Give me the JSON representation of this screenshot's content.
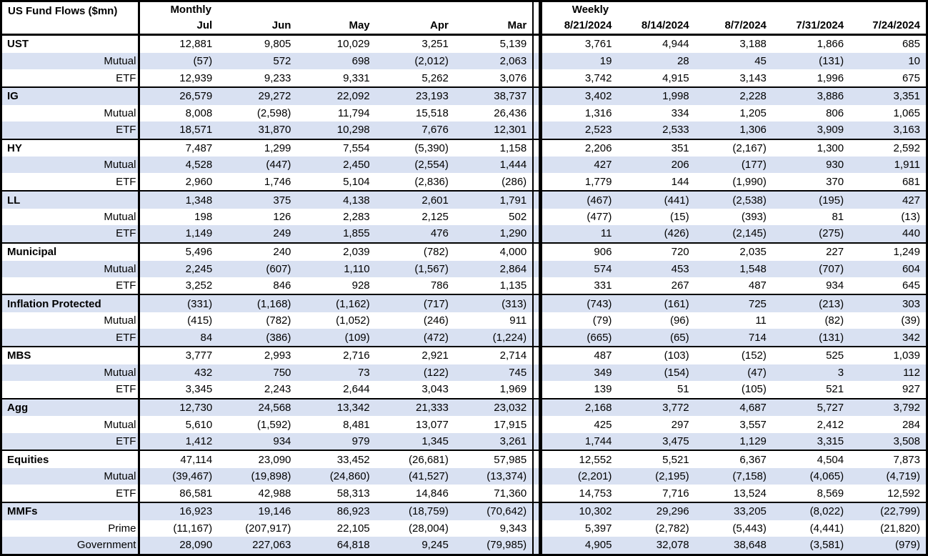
{
  "colors": {
    "row_shading": "#d9e1f2",
    "border": "#000000",
    "text": "#000000",
    "background": "#ffffff"
  },
  "chart_data": {
    "type": "table",
    "title": "US Fund Flows ($mn)",
    "negative_format": "parentheses",
    "sections": [
      {
        "label": "Monthly",
        "columns": [
          "Jul",
          "Jun",
          "May",
          "Apr",
          "Mar"
        ]
      },
      {
        "label": "Weekly",
        "columns": [
          "8/21/2024",
          "8/14/2024",
          "8/7/2024",
          "7/31/2024",
          "7/24/2024"
        ]
      }
    ],
    "groups": [
      {
        "name": "UST",
        "rows": [
          {
            "label": "UST",
            "bold": true,
            "monthly": [
              12881,
              9805,
              10029,
              3251,
              5139
            ],
            "weekly": [
              3761,
              4944,
              3188,
              1866,
              685
            ]
          },
          {
            "label": "Mutual",
            "bold": false,
            "monthly": [
              -57,
              572,
              698,
              -2012,
              2063
            ],
            "weekly": [
              19,
              28,
              45,
              -131,
              10
            ]
          },
          {
            "label": "ETF",
            "bold": false,
            "monthly": [
              12939,
              9233,
              9331,
              5262,
              3076
            ],
            "weekly": [
              3742,
              4915,
              3143,
              1996,
              675
            ]
          }
        ]
      },
      {
        "name": "IG",
        "rows": [
          {
            "label": "IG",
            "bold": true,
            "monthly": [
              26579,
              29272,
              22092,
              23193,
              38737
            ],
            "weekly": [
              3402,
              1998,
              2228,
              3886,
              3351
            ]
          },
          {
            "label": "Mutual",
            "bold": false,
            "monthly": [
              8008,
              -2598,
              11794,
              15518,
              26436
            ],
            "weekly": [
              1316,
              334,
              1205,
              806,
              1065
            ]
          },
          {
            "label": "ETF",
            "bold": false,
            "monthly": [
              18571,
              31870,
              10298,
              7676,
              12301
            ],
            "weekly": [
              2523,
              2533,
              1306,
              3909,
              3163
            ]
          }
        ]
      },
      {
        "name": "HY",
        "rows": [
          {
            "label": "HY",
            "bold": true,
            "monthly": [
              7487,
              1299,
              7554,
              -5390,
              1158
            ],
            "weekly": [
              2206,
              351,
              -2167,
              1300,
              2592
            ]
          },
          {
            "label": "Mutual",
            "bold": false,
            "monthly": [
              4528,
              -447,
              2450,
              -2554,
              1444
            ],
            "weekly": [
              427,
              206,
              -177,
              930,
              1911
            ]
          },
          {
            "label": "ETF",
            "bold": false,
            "monthly": [
              2960,
              1746,
              5104,
              -2836,
              -286
            ],
            "weekly": [
              1779,
              144,
              -1990,
              370,
              681
            ]
          }
        ]
      },
      {
        "name": "LL",
        "rows": [
          {
            "label": "LL",
            "bold": true,
            "monthly": [
              1348,
              375,
              4138,
              2601,
              1791
            ],
            "weekly": [
              -467,
              -441,
              -2538,
              -195,
              427
            ]
          },
          {
            "label": "Mutual",
            "bold": false,
            "monthly": [
              198,
              126,
              2283,
              2125,
              502
            ],
            "weekly": [
              -477,
              -15,
              -393,
              81,
              -13
            ]
          },
          {
            "label": "ETF",
            "bold": false,
            "monthly": [
              1149,
              249,
              1855,
              476,
              1290
            ],
            "weekly": [
              11,
              -426,
              -2145,
              -275,
              440
            ]
          }
        ]
      },
      {
        "name": "Municipal",
        "rows": [
          {
            "label": "Municipal",
            "bold": true,
            "monthly": [
              5496,
              240,
              2039,
              -782,
              4000
            ],
            "weekly": [
              906,
              720,
              2035,
              227,
              1249
            ]
          },
          {
            "label": "Mutual",
            "bold": false,
            "monthly": [
              2245,
              -607,
              1110,
              -1567,
              2864
            ],
            "weekly": [
              574,
              453,
              1548,
              -707,
              604
            ]
          },
          {
            "label": "ETF",
            "bold": false,
            "monthly": [
              3252,
              846,
              928,
              786,
              1135
            ],
            "weekly": [
              331,
              267,
              487,
              934,
              645
            ]
          }
        ]
      },
      {
        "name": "Inflation Protected",
        "rows": [
          {
            "label": "Inflation Protected",
            "bold": true,
            "monthly": [
              -331,
              -1168,
              -1162,
              -717,
              -313
            ],
            "weekly": [
              -743,
              -161,
              725,
              -213,
              303
            ]
          },
          {
            "label": "Mutual",
            "bold": false,
            "monthly": [
              -415,
              -782,
              -1052,
              -246,
              911
            ],
            "weekly": [
              -79,
              -96,
              11,
              -82,
              -39
            ]
          },
          {
            "label": "ETF",
            "bold": false,
            "monthly": [
              84,
              -386,
              -109,
              -472,
              -1224
            ],
            "weekly": [
              -665,
              -65,
              714,
              -131,
              342
            ]
          }
        ]
      },
      {
        "name": "MBS",
        "rows": [
          {
            "label": "MBS",
            "bold": true,
            "monthly": [
              3777,
              2993,
              2716,
              2921,
              2714
            ],
            "weekly": [
              487,
              -103,
              -152,
              525,
              1039
            ]
          },
          {
            "label": "Mutual",
            "bold": false,
            "monthly": [
              432,
              750,
              73,
              -122,
              745
            ],
            "weekly": [
              349,
              -154,
              -47,
              3,
              112
            ]
          },
          {
            "label": "ETF",
            "bold": false,
            "monthly": [
              3345,
              2243,
              2644,
              3043,
              1969
            ],
            "weekly": [
              139,
              51,
              -105,
              521,
              927
            ]
          }
        ]
      },
      {
        "name": "Agg",
        "rows": [
          {
            "label": "Agg",
            "bold": true,
            "monthly": [
              12730,
              24568,
              13342,
              21333,
              23032
            ],
            "weekly": [
              2168,
              3772,
              4687,
              5727,
              3792
            ]
          },
          {
            "label": "Mutual",
            "bold": false,
            "monthly": [
              5610,
              -1592,
              8481,
              13077,
              17915
            ],
            "weekly": [
              425,
              297,
              3557,
              2412,
              284
            ]
          },
          {
            "label": "ETF",
            "bold": false,
            "monthly": [
              1412,
              934,
              979,
              1345,
              3261
            ],
            "weekly": [
              1744,
              3475,
              1129,
              3315,
              3508
            ]
          }
        ]
      },
      {
        "name": "Equities",
        "rows": [
          {
            "label": "Equities",
            "bold": true,
            "monthly": [
              47114,
              23090,
              33452,
              -26681,
              57985
            ],
            "weekly": [
              12552,
              5521,
              6367,
              4504,
              7873
            ]
          },
          {
            "label": "Mutual",
            "bold": false,
            "monthly": [
              -39467,
              -19898,
              -24860,
              -41527,
              -13374
            ],
            "weekly": [
              -2201,
              -2195,
              -7158,
              -4065,
              -4719
            ]
          },
          {
            "label": "ETF",
            "bold": false,
            "monthly": [
              86581,
              42988,
              58313,
              14846,
              71360
            ],
            "weekly": [
              14753,
              7716,
              13524,
              8569,
              12592
            ]
          }
        ]
      },
      {
        "name": "MMFs",
        "rows": [
          {
            "label": "MMFs",
            "bold": true,
            "monthly": [
              16923,
              19146,
              86923,
              -18759,
              -70642
            ],
            "weekly": [
              10302,
              29296,
              33205,
              -8022,
              -22799
            ]
          },
          {
            "label": "Prime",
            "bold": false,
            "monthly": [
              -11167,
              -207917,
              22105,
              -28004,
              9343
            ],
            "weekly": [
              5397,
              -2782,
              -5443,
              -4441,
              -21820
            ]
          },
          {
            "label": "Government",
            "bold": false,
            "monthly": [
              28090,
              227063,
              64818,
              9245,
              -79985
            ],
            "weekly": [
              4905,
              32078,
              38648,
              -3581,
              -979
            ]
          }
        ]
      }
    ]
  }
}
